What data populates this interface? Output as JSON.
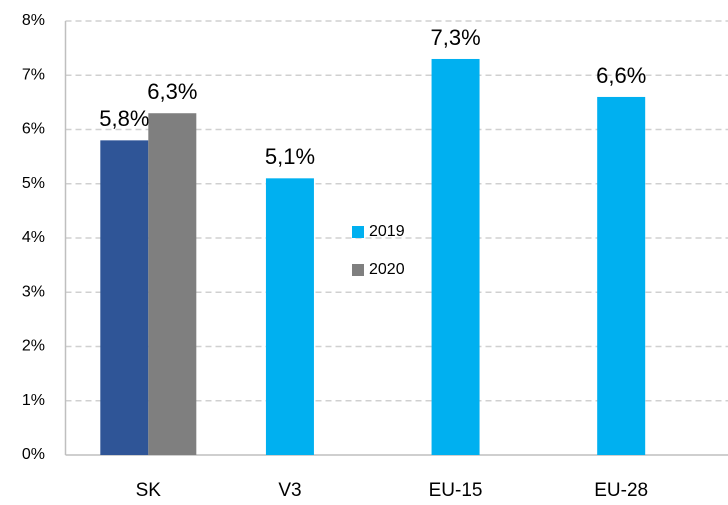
{
  "chart_data": {
    "type": "bar",
    "categories": [
      "SK",
      "V3",
      "EU-15",
      "EU-28"
    ],
    "series": [
      {
        "name": "2019",
        "color": "#00b0f0",
        "point_colors": [
          "#2f5597",
          "#00b0f0",
          "#00b0f0",
          "#00b0f0"
        ],
        "values": [
          5.8,
          5.1,
          7.3,
          6.6
        ],
        "value_labels": [
          "5,8%",
          "5,1%",
          "7,3%",
          "6,6%"
        ]
      },
      {
        "name": "2020",
        "color": "#7f7f7f",
        "values": [
          6.3,
          null,
          null,
          null
        ],
        "value_labels": [
          "6,3%",
          null,
          null,
          null
        ]
      }
    ],
    "ylim": [
      0,
      8
    ],
    "yticks": [
      {
        "value": 0,
        "label": "0%"
      },
      {
        "value": 1,
        "label": "1%"
      },
      {
        "value": 2,
        "label": "2%"
      },
      {
        "value": 3,
        "label": "3%"
      },
      {
        "value": 4,
        "label": "4%"
      },
      {
        "value": 5,
        "label": "5%"
      },
      {
        "value": 6,
        "label": "6%"
      },
      {
        "value": 7,
        "label": "7%"
      },
      {
        "value": 8,
        "label": "8%"
      }
    ],
    "grid": true,
    "legend": "center"
  }
}
